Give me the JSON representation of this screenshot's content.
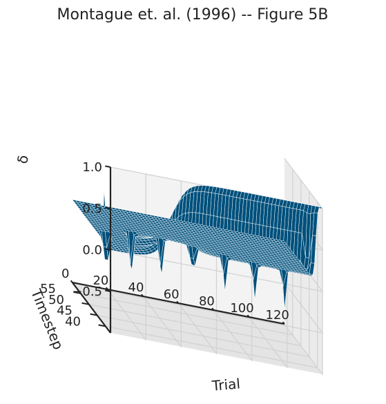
{
  "chart_data": {
    "type": "surface3d",
    "title": "Montague et. al. (1996) -- Figure 5B",
    "xlabel": "Trial",
    "ylabel": "Timestep",
    "zlabel": "δ",
    "x_ticks": [
      0,
      20,
      40,
      60,
      80,
      100,
      120
    ],
    "y_ticks": [
      40,
      45,
      50,
      55
    ],
    "z_ticks": [
      1.0,
      0.5,
      0.0,
      -0.5
    ],
    "z_tick_labels": [
      "1.0",
      "0.5",
      "0.0",
      "−0.5"
    ],
    "xlim": [
      0,
      120
    ],
    "ylim": [
      37,
      60
    ],
    "zlim": [
      -1.0,
      1.0
    ],
    "surface_color": "#00507c",
    "wire_color": "#ffffff",
    "series": [
      {
        "description_values": [
          {
            "trial": 0,
            "timestep": 41,
            "delta": 0.7
          },
          {
            "trial": 0,
            "timestep": 41.5,
            "delta": -0.8
          }
        ],
        "plateau": {
          "trial_start": 30,
          "trial_end": 120,
          "timestep_max": 41,
          "value": 1.0,
          "sigmoid_center_trial": 36
        },
        "spikes": [
          {
            "trial": 5,
            "timestep": 45,
            "delta": -0.75
          },
          {
            "trial": 22,
            "timestep": 48,
            "delta": -0.65
          },
          {
            "trial": 38,
            "timestep": 47,
            "delta": -0.6
          },
          {
            "trial": 55,
            "timestep": 46,
            "delta": -0.55
          },
          {
            "trial": 72,
            "timestep": 45,
            "delta": -0.5
          },
          {
            "trial": 88,
            "timestep": 44,
            "delta": -0.5
          },
          {
            "trial": 104,
            "timestep": 43,
            "delta": -0.55
          },
          {
            "trial": 115,
            "timestep": 41,
            "delta": -0.6
          }
        ]
      }
    ]
  }
}
